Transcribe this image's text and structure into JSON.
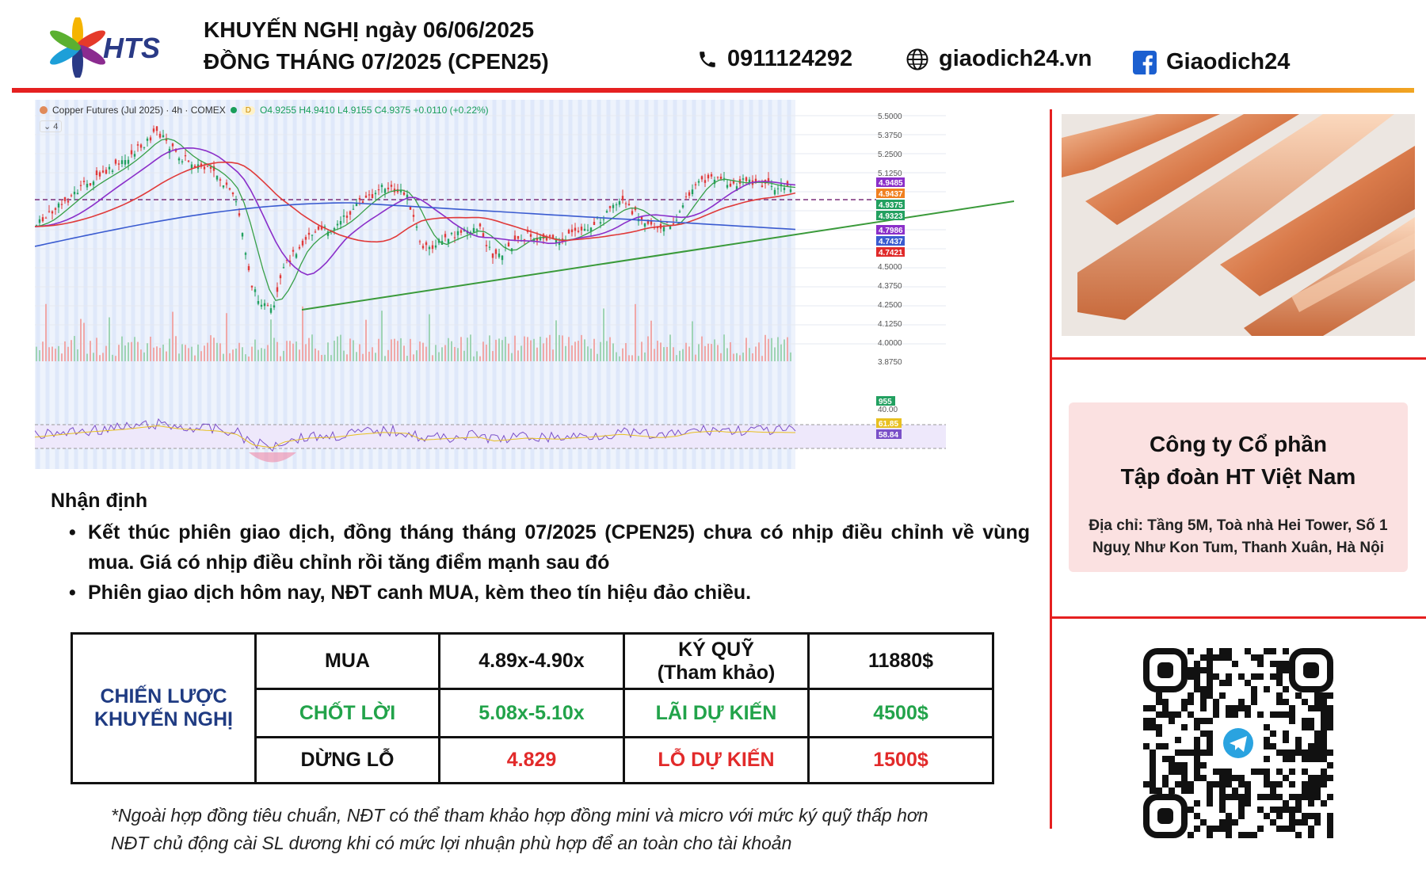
{
  "header": {
    "brand": "HTS",
    "title_line1": "KHUYẾN NGHỊ ngày 06/06/2025",
    "title_line2": "ĐỒNG THÁNG 07/2025 (CPEN25)",
    "phone": "0911124292",
    "website": "giaodich24.vn",
    "facebook": "Giaodich24",
    "colors": {
      "rule_red": "#e52020",
      "rule_orange": "#f1a622",
      "brand_blue": "#2a3a86"
    }
  },
  "chart": {
    "symbol": "Copper Futures (Jul 2025) · 4h · COMEX",
    "badge": "D",
    "ohlc": "O4.9255 H4.9410 L4.9155 C4.9375 +0.0110 (+0.22%)",
    "indicator_toggle": "⌄ 4",
    "price_ticks": [
      "5.5000",
      "5.3750",
      "5.2500",
      "5.1250",
      "4.5000",
      "4.3750",
      "4.2500",
      "4.1250",
      "4.0000",
      "3.8750",
      "40.00"
    ],
    "price_labels": [
      {
        "text": "4.9485",
        "color": "#8b2fc9"
      },
      {
        "text": "4.9437",
        "color": "#f08020"
      },
      {
        "text": "4.9375",
        "color": "#22a060"
      },
      {
        "text": "4.9323",
        "color": "#22a060"
      },
      {
        "text": "4.7986",
        "color": "#8b2fc9"
      },
      {
        "text": "4.7437",
        "color": "#3a5bd0"
      },
      {
        "text": "4.7421",
        "color": "#e02a2a"
      }
    ],
    "volume_label": "955",
    "rsi_labels": [
      {
        "text": "61.85",
        "color": "#e8c020"
      },
      {
        "text": "58.84",
        "color": "#7a50c8"
      }
    ]
  },
  "assessment": {
    "title": "Nhận định",
    "bullets": [
      "Kết thúc phiên giao dịch, đồng tháng tháng 07/2025 (CPEN25) chưa có nhịp điều chỉnh về vùng mua. Giá có nhịp điều chỉnh rồi tăng điểm mạnh sau đó",
      "Phiên giao dịch hôm nay, NĐT canh MUA, kèm theo tín hiệu đảo chiều."
    ]
  },
  "strategy": {
    "heading_line1": "CHIẾN LƯỢC",
    "heading_line2": "KHUYẾN NGHỊ",
    "buy_label": "MUA",
    "buy_value": "4.89x-4.90x",
    "margin_label_line1": "KÝ QUỸ",
    "margin_label_line2": "(Tham khảo)",
    "margin_value": "11880$",
    "take_profit_label": "CHỐT LỜI",
    "take_profit_value": "5.08x-5.10x",
    "expected_profit_label": "LÃI DỰ KIẾN",
    "expected_profit_value": "4500$",
    "stop_loss_label": "DỪNG LỖ",
    "stop_loss_value": "4.829",
    "expected_loss_label": "LỖ DỰ KIẾN",
    "expected_loss_value": "1500$",
    "colors": {
      "heading": "#1f3b82",
      "profit": "#22a34a",
      "loss": "#e22a2a"
    }
  },
  "footnote": {
    "line1": "*Ngoài hợp đồng tiêu chuẩn, NĐT có thể tham khảo hợp đồng mini và micro với mức ký quỹ thấp hơn",
    "line2": "NĐT chủ động cài SL dương khi có mức lợi nhuận phù hợp để an toàn cho tài khoản"
  },
  "company": {
    "name_line1": "Công ty Cổ phần",
    "name_line2": "Tập đoàn HT Việt Nam",
    "address_line1": "Địa chỉ: Tầng 5M, Toà nhà Hei Tower, Số 1",
    "address_line2": "Nguỵ Như Kon Tum, Thanh Xuân, Hà Nội"
  },
  "icons": [
    "hts-logo-icon",
    "phone-icon",
    "globe-icon",
    "facebook-icon",
    "telegram-icon",
    "qr-code"
  ]
}
